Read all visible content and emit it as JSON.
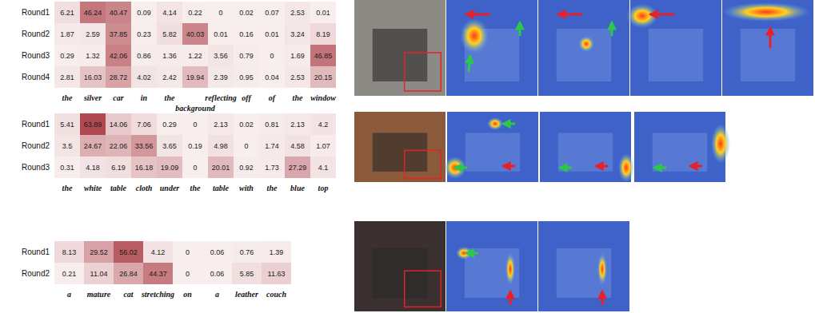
{
  "chart_data": [
    {
      "type": "heatmap",
      "x": [
        "the",
        "silver",
        "car",
        "in",
        "the",
        "background",
        "reflecting",
        "off",
        "of",
        "the",
        "window"
      ],
      "y": [
        "Round1",
        "Round2",
        "Round3",
        "Round4"
      ],
      "values": [
        [
          6.21,
          46.24,
          40.47,
          0.09,
          4.14,
          0.22,
          0,
          0.02,
          0.07,
          2.53,
          0.01
        ],
        [
          1.87,
          2.59,
          37.85,
          0.23,
          5.82,
          40.03,
          0.01,
          0.16,
          0.01,
          3.24,
          8.19
        ],
        [
          0.29,
          1.32,
          42.06,
          0.86,
          1.36,
          1.22,
          3.56,
          0.79,
          0,
          1.69,
          46.85
        ],
        [
          2.81,
          16.03,
          28.72,
          4.02,
          2.42,
          19.94,
          2.39,
          0.95,
          0.04,
          2.53,
          20.15
        ]
      ],
      "data_labels": true
    },
    {
      "type": "heatmap",
      "x": [
        "the",
        "white",
        "table",
        "cloth",
        "under",
        "the",
        "table",
        "with",
        "the",
        "blue",
        "top"
      ],
      "y": [
        "Round1",
        "Round2",
        "Round3"
      ],
      "values": [
        [
          5.41,
          63.89,
          14.06,
          7.06,
          0.29,
          0,
          2.13,
          0.02,
          0.81,
          2.13,
          4.2
        ],
        [
          3.5,
          24.67,
          22.06,
          33.56,
          3.65,
          0.19,
          4.98,
          0,
          1.74,
          4.58,
          1.07
        ],
        [
          0.31,
          4.18,
          6.19,
          16.18,
          19.09,
          0,
          20.01,
          0.92,
          1.73,
          27.29,
          4.1
        ]
      ],
      "data_labels": true
    },
    {
      "type": "heatmap",
      "x": [
        "a",
        "mature",
        "cat",
        "stretching",
        "on",
        "a",
        "leather",
        "couch"
      ],
      "y": [
        "Round1",
        "Round2"
      ],
      "values": [
        [
          8.13,
          29.52,
          56.02,
          4.12,
          0,
          0.06,
          0.76,
          1.39
        ],
        [
          0.21,
          11.04,
          26.84,
          44.37,
          0,
          0.06,
          5.85,
          11.63
        ]
      ],
      "data_labels": true
    }
  ]
}
